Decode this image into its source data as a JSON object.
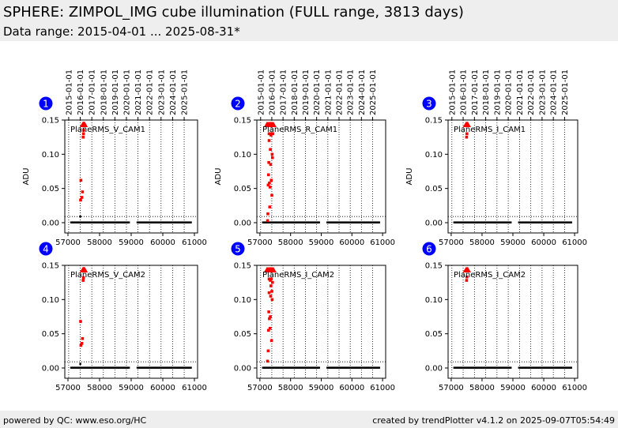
{
  "header": {
    "title": "SPHERE: ZIMPOL_IMG cube illumination (FULL range, 3813 days)",
    "subtitle": "Data range: 2015-04-01 ... 2025-08-31*"
  },
  "footer": {
    "left": "powered by QC: www.eso.org/HC",
    "right": "created by trendPlotter v4.1.2 on 2025-09-07T05:54:49"
  },
  "colors": {
    "badge": "#0000ff",
    "outlier": "#ff0000",
    "points": "#000000",
    "header_band": "#eeeeee"
  },
  "chart_data": [
    {
      "type": "scatter",
      "panel": "1",
      "label": "PlaneRMS_V_CAM1",
      "ylabel": "ADU",
      "xlim": [
        56900,
        61100
      ],
      "ylim": [
        -0.015,
        0.15
      ],
      "xticks": [
        57000,
        58000,
        59000,
        60000,
        61000
      ],
      "yticks": [
        "0.00",
        "0.05",
        "0.10",
        "0.15"
      ],
      "top_ticks": [
        "2015-01-01",
        "2016-01-01",
        "2017-01-01",
        "2018-01-01",
        "2019-01-01",
        "2020-01-01",
        "2021-01-01",
        "2022-01-01",
        "2023-01-01",
        "2024-01-01",
        "2025-01-01"
      ],
      "ref_line": 0.009,
      "normal_value": 0.0008,
      "normal_segments": [
        [
          57100,
          58950
        ],
        [
          59200,
          60350
        ],
        [
          60380,
          60900
        ]
      ],
      "outliers": [
        [
          57400,
          0.033
        ],
        [
          57410,
          0.062
        ],
        [
          57440,
          0.037
        ],
        [
          57460,
          0.045
        ],
        [
          57480,
          0.125
        ],
        [
          57490,
          0.13
        ],
        [
          57500,
          0.135
        ]
      ],
      "black_points": [
        [
          57390,
          0.009
        ]
      ],
      "clipped_x": [
        57470,
        57480,
        57490,
        57500,
        57510,
        57520,
        57530
      ]
    },
    {
      "type": "scatter",
      "panel": "2",
      "label": "PlaneRMS_R_CAM1",
      "ylabel": "ADU",
      "xlim": [
        56900,
        61100
      ],
      "ylim": [
        -0.015,
        0.15
      ],
      "xticks": [
        57000,
        58000,
        59000,
        60000,
        61000
      ],
      "yticks": [
        "0.00",
        "0.05",
        "0.10",
        "0.15"
      ],
      "top_ticks": [
        "2015-01-01",
        "2016-01-01",
        "2017-01-01",
        "2018-01-01",
        "2019-01-01",
        "2020-01-01",
        "2021-01-01",
        "2022-01-01",
        "2023-01-01",
        "2024-01-01",
        "2025-01-01"
      ],
      "ref_line": 0.009,
      "normal_value": 0.0008,
      "normal_segments": [
        [
          57100,
          58950
        ],
        [
          59200,
          60350
        ],
        [
          60380,
          60900
        ]
      ],
      "outliers": [
        [
          57250,
          0.003
        ],
        [
          57260,
          0.013
        ],
        [
          57270,
          0.055
        ],
        [
          57280,
          0.07
        ],
        [
          57290,
          0.088
        ],
        [
          57300,
          0.12
        ],
        [
          57310,
          0.058
        ],
        [
          57320,
          0.023
        ],
        [
          57330,
          0.052
        ],
        [
          57340,
          0.107
        ],
        [
          57350,
          0.085
        ],
        [
          57360,
          0.128
        ],
        [
          57370,
          0.062
        ],
        [
          57390,
          0.04
        ],
        [
          57400,
          0.1
        ],
        [
          57410,
          0.095
        ],
        [
          57420,
          0.13
        ],
        [
          57300,
          0.13
        ],
        [
          57320,
          0.13
        ],
        [
          57370,
          0.13
        ]
      ],
      "black_points": [],
      "clipped_x": [
        57230,
        57260,
        57290,
        57320,
        57350,
        57380,
        57410,
        57440
      ]
    },
    {
      "type": "scatter",
      "panel": "3",
      "label": "PlaneRMS_I_CAM1",
      "ylabel": "ADU",
      "xlim": [
        56900,
        61100
      ],
      "ylim": [
        -0.015,
        0.15
      ],
      "xticks": [
        57000,
        58000,
        59000,
        60000,
        61000
      ],
      "yticks": [
        "0.00",
        "0.05",
        "0.10",
        "0.15"
      ],
      "top_ticks": [
        "2015-01-01",
        "2016-01-01",
        "2017-01-01",
        "2018-01-01",
        "2019-01-01",
        "2020-01-01",
        "2021-01-01",
        "2022-01-01",
        "2023-01-01",
        "2024-01-01",
        "2025-01-01"
      ],
      "ref_line": 0.009,
      "normal_value": 0.0008,
      "normal_segments": [
        [
          57100,
          58950
        ],
        [
          59200,
          60350
        ],
        [
          60380,
          60900
        ]
      ],
      "outliers": [
        [
          57500,
          0.125
        ],
        [
          57510,
          0.13
        ]
      ],
      "black_points": [],
      "clipped_x": [
        57480,
        57500,
        57520,
        57540
      ]
    },
    {
      "type": "scatter",
      "panel": "4",
      "label": "PlaneRMS_V_CAM2",
      "ylabel": "",
      "xlim": [
        56900,
        61100
      ],
      "ylim": [
        -0.015,
        0.15
      ],
      "xticks": [
        57000,
        58000,
        59000,
        60000,
        61000
      ],
      "yticks": [
        "0.00",
        "0.05",
        "0.10",
        "0.15"
      ],
      "top_ticks": [],
      "ref_line": 0.009,
      "normal_value": 0.0008,
      "normal_segments": [
        [
          57100,
          58950
        ],
        [
          59200,
          60350
        ],
        [
          60380,
          60900
        ]
      ],
      "outliers": [
        [
          57400,
          0.068
        ],
        [
          57410,
          0.033
        ],
        [
          57440,
          0.036
        ],
        [
          57460,
          0.043
        ],
        [
          57480,
          0.128
        ],
        [
          57490,
          0.132
        ]
      ],
      "black_points": [
        [
          57390,
          0.006
        ]
      ],
      "clipped_x": [
        57470,
        57480,
        57490,
        57500,
        57510,
        57520,
        57530
      ]
    },
    {
      "type": "scatter",
      "panel": "5",
      "label": "PlaneRMS_I_CAM2",
      "ylabel": "",
      "xlim": [
        56900,
        61100
      ],
      "ylim": [
        -0.015,
        0.15
      ],
      "xticks": [
        57000,
        58000,
        59000,
        60000,
        61000
      ],
      "yticks": [
        "0.00",
        "0.05",
        "0.10",
        "0.15"
      ],
      "top_ticks": [],
      "ref_line": 0.009,
      "normal_value": 0.0008,
      "normal_segments": [
        [
          57100,
          58950
        ],
        [
          59200,
          60350
        ],
        [
          60380,
          60900
        ]
      ],
      "outliers": [
        [
          57250,
          0.01
        ],
        [
          57270,
          0.025
        ],
        [
          57280,
          0.055
        ],
        [
          57290,
          0.082
        ],
        [
          57300,
          0.11
        ],
        [
          57310,
          0.072
        ],
        [
          57320,
          0.13
        ],
        [
          57330,
          0.058
        ],
        [
          57340,
          0.075
        ],
        [
          57350,
          0.105
        ],
        [
          57360,
          0.12
        ],
        [
          57370,
          0.13
        ],
        [
          57380,
          0.04
        ],
        [
          57390,
          0.112
        ],
        [
          57400,
          0.1
        ],
        [
          57410,
          0.125
        ],
        [
          57300,
          0.13
        ],
        [
          57340,
          0.128
        ]
      ],
      "black_points": [],
      "clipped_x": [
        57230,
        57260,
        57290,
        57320,
        57350,
        57380,
        57410,
        57440
      ]
    },
    {
      "type": "scatter",
      "panel": "6",
      "label": "PlaneRMS_I_CAM2",
      "ylabel": "",
      "xlim": [
        56900,
        61100
      ],
      "ylim": [
        -0.015,
        0.15
      ],
      "xticks": [
        57000,
        58000,
        59000,
        60000,
        61000
      ],
      "yticks": [
        "0.00",
        "0.05",
        "0.10",
        "0.15"
      ],
      "top_ticks": [],
      "ref_line": 0.009,
      "normal_value": 0.0008,
      "normal_segments": [
        [
          57100,
          58950
        ],
        [
          59200,
          60350
        ],
        [
          60380,
          60900
        ]
      ],
      "outliers": [
        [
          57500,
          0.128
        ],
        [
          57510,
          0.133
        ]
      ],
      "black_points": [],
      "clipped_x": [
        57480,
        57500,
        57520,
        57540
      ]
    }
  ]
}
